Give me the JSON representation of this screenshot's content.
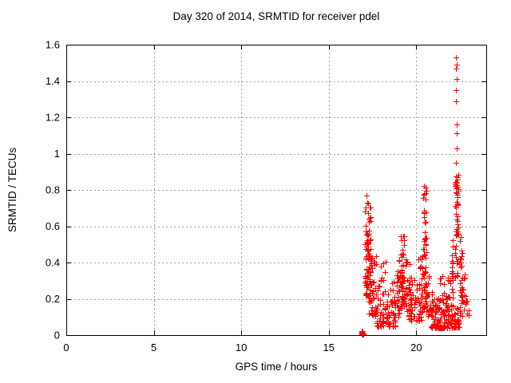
{
  "chart_data": {
    "type": "scatter",
    "title": "Day 320 of 2014, SRMTID for receiver pdel",
    "xlabel": "GPS time / hours",
    "ylabel": "SRMTID / TECUs",
    "xlim": [
      0,
      24
    ],
    "ylim": [
      0,
      1.6
    ],
    "xticks": {
      "values": [
        0,
        5,
        10,
        15,
        20
      ],
      "labels": [
        "0",
        "5",
        "10",
        "15",
        "20"
      ]
    },
    "yticks": {
      "values": [
        0,
        0.2,
        0.4,
        0.6,
        0.8,
        1.0,
        1.2,
        1.4,
        1.6
      ],
      "labels": [
        "0",
        "0.2",
        "0.4",
        "0.6",
        "0.8",
        "1",
        "1.2",
        "1.4",
        "1.6"
      ]
    },
    "grid": true,
    "legend": false,
    "marker": {
      "glyph": "plus",
      "color": "#ff0000",
      "size": 7
    },
    "series_name": "SRMTID",
    "high_points": [
      [
        22.28,
        1.53
      ],
      [
        22.31,
        1.49
      ],
      [
        22.27,
        1.47
      ],
      [
        22.3,
        1.41
      ],
      [
        22.28,
        1.35
      ],
      [
        22.26,
        1.29
      ],
      [
        22.31,
        1.16
      ],
      [
        22.29,
        1.11
      ],
      [
        22.3,
        1.03
      ],
      [
        22.27,
        0.95
      ]
    ],
    "clusters": [
      {
        "x0": 16.86,
        "x1": 16.96,
        "y0": 0.002,
        "y1": 0.022,
        "n": 30,
        "skew": 1.0
      },
      {
        "x0": 17.06,
        "x1": 17.24,
        "y0": 0.22,
        "y1": 0.78,
        "n": 48,
        "skew": 1.25
      },
      {
        "x0": 17.24,
        "x1": 17.42,
        "y0": 0.18,
        "y1": 0.73,
        "n": 40,
        "skew": 1.25
      },
      {
        "x0": 17.3,
        "x1": 17.72,
        "y0": 0.1,
        "y1": 0.45,
        "n": 42,
        "skew": 1.5
      },
      {
        "x0": 17.66,
        "x1": 18.88,
        "y0": 0.05,
        "y1": 0.3,
        "n": 85,
        "skew": 1.9
      },
      {
        "x0": 17.92,
        "x1": 18.42,
        "y0": 0.3,
        "y1": 0.43,
        "n": 8,
        "skew": 1.0
      },
      {
        "x0": 18.86,
        "x1": 19.12,
        "y0": 0.1,
        "y1": 0.46,
        "n": 28,
        "skew": 1.4
      },
      {
        "x0": 19.12,
        "x1": 19.3,
        "y0": 0.15,
        "y1": 0.63,
        "n": 50,
        "skew": 1.15
      },
      {
        "x0": 19.28,
        "x1": 19.7,
        "y0": 0.12,
        "y1": 0.42,
        "n": 26,
        "skew": 1.3
      },
      {
        "x0": 19.55,
        "x1": 20.35,
        "y0": 0.08,
        "y1": 0.32,
        "n": 65,
        "skew": 1.7
      },
      {
        "x0": 20.12,
        "x1": 20.4,
        "y0": 0.28,
        "y1": 0.46,
        "n": 10,
        "skew": 1.0
      },
      {
        "x0": 20.4,
        "x1": 20.6,
        "y0": 0.15,
        "y1": 0.88,
        "n": 52,
        "skew": 1.35
      },
      {
        "x0": 20.58,
        "x1": 20.92,
        "y0": 0.1,
        "y1": 0.35,
        "n": 20,
        "skew": 1.4
      },
      {
        "x0": 20.85,
        "x1": 21.96,
        "y0": 0.04,
        "y1": 0.22,
        "n": 110,
        "skew": 1.8
      },
      {
        "x0": 21.35,
        "x1": 21.92,
        "y0": 0.2,
        "y1": 0.33,
        "n": 12,
        "skew": 1.2
      },
      {
        "x0": 21.94,
        "x1": 22.12,
        "y0": 0.1,
        "y1": 0.56,
        "n": 24,
        "skew": 1.3
      },
      {
        "x0": 22.2,
        "x1": 22.4,
        "y0": 0.3,
        "y1": 0.89,
        "n": 46,
        "skew": 0.62
      },
      {
        "x0": 22.38,
        "x1": 22.52,
        "y0": 0.5,
        "y1": 0.62,
        "n": 4,
        "skew": 1.0
      },
      {
        "x0": 22.42,
        "x1": 22.62,
        "y0": 0.37,
        "y1": 0.48,
        "n": 10,
        "skew": 1.0
      },
      {
        "x0": 22.46,
        "x1": 22.76,
        "y0": 0.22,
        "y1": 0.35,
        "n": 12,
        "skew": 1.0
      },
      {
        "x0": 22.54,
        "x1": 22.86,
        "y0": 0.1,
        "y1": 0.22,
        "n": 12,
        "skew": 1.0
      },
      {
        "x0": 21.96,
        "x1": 22.52,
        "y0": 0.04,
        "y1": 0.16,
        "n": 42,
        "skew": 1.5
      },
      {
        "x0": 22.8,
        "x1": 23.02,
        "y0": 0.1,
        "y1": 0.2,
        "n": 6,
        "skew": 1.0
      }
    ]
  },
  "colors": {
    "marker": "#ff0000",
    "grid": "#9e9e9e",
    "frame": "#000000",
    "text": "#000000",
    "background": "#ffffff"
  }
}
